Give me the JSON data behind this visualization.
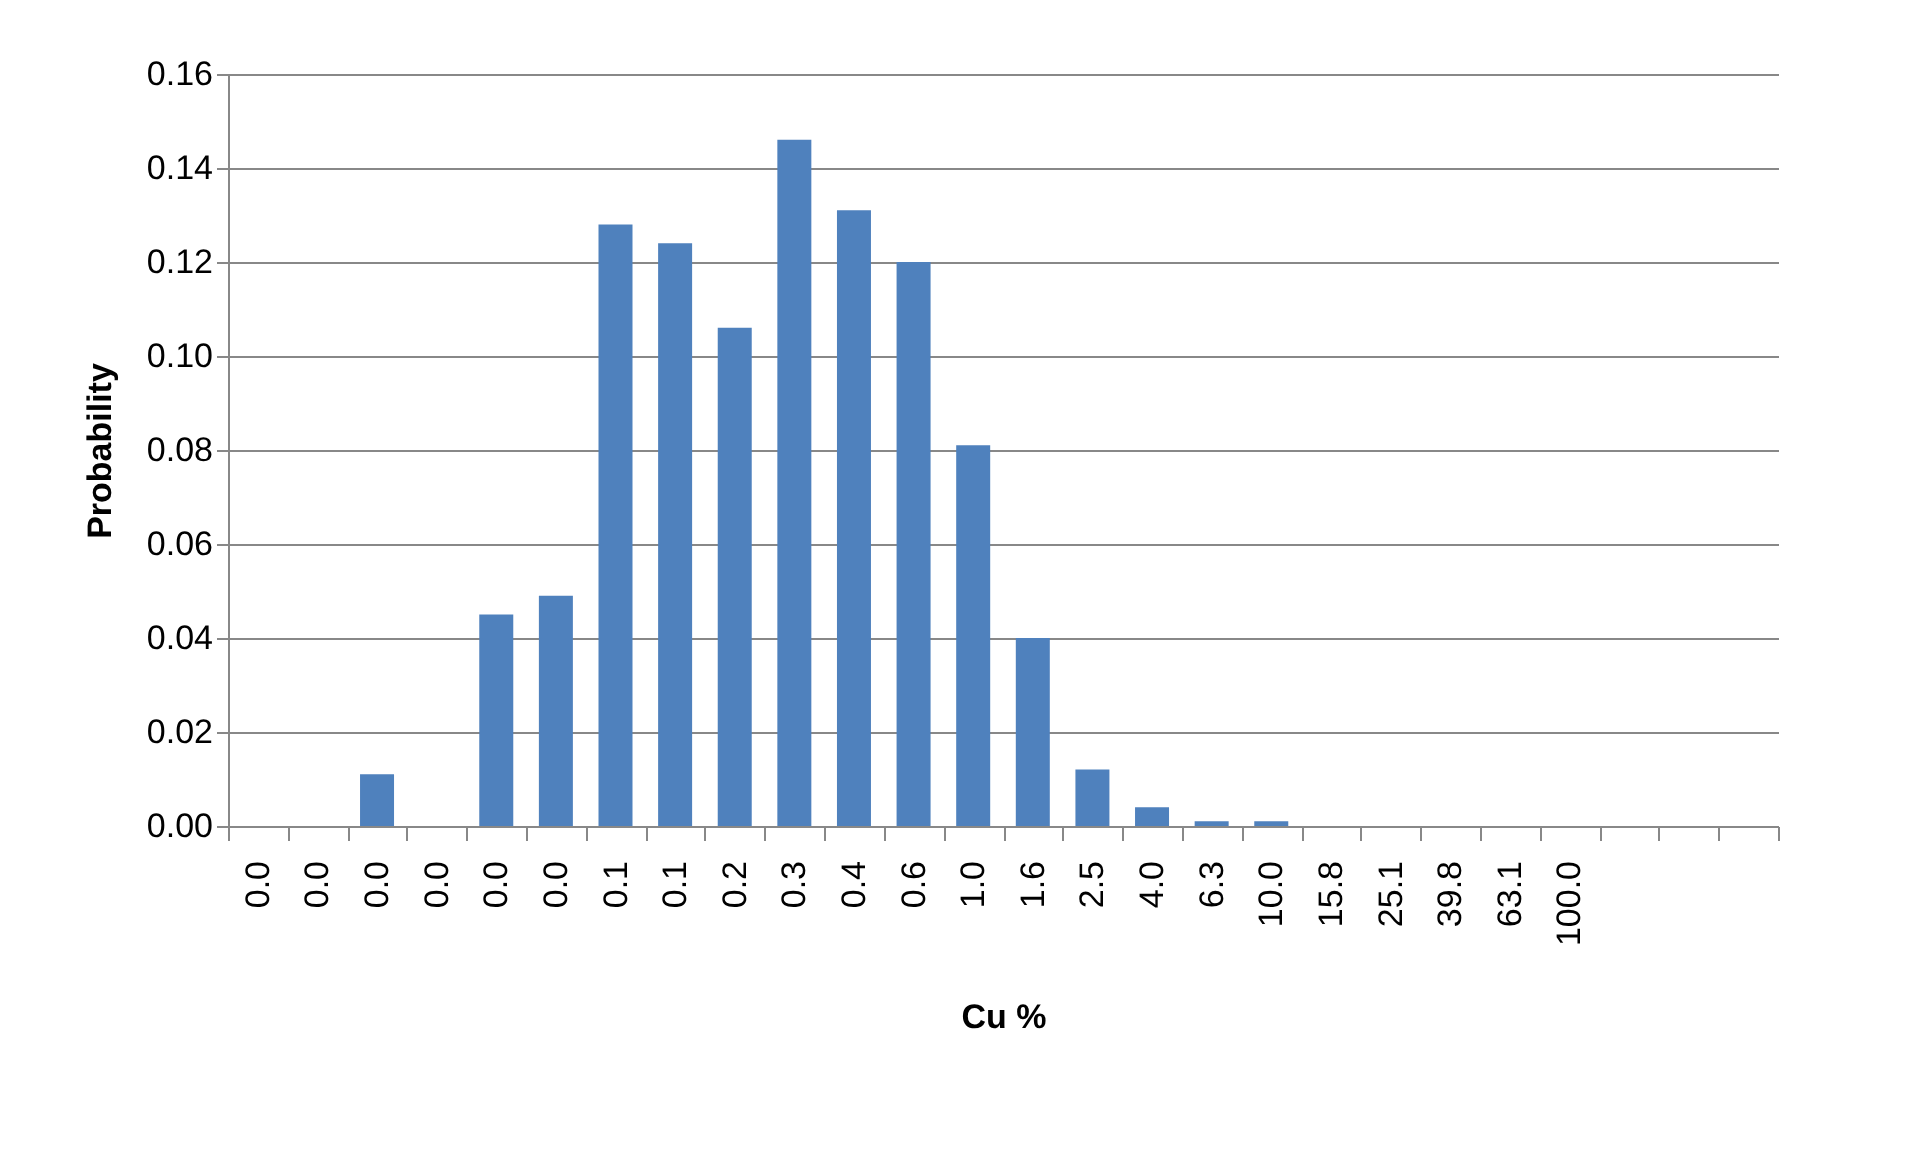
{
  "chart_data": {
    "type": "bar",
    "xlabel": "Cu %",
    "ylabel": "Probability",
    "categories": [
      "0.0",
      "0.0",
      "0.0",
      "0.0",
      "0.0",
      "0.0",
      "0.1",
      "0.1",
      "0.2",
      "0.3",
      "0.4",
      "0.6",
      "1.0",
      "1.6",
      "2.5",
      "4.0",
      "6.3",
      "10.0",
      "15.8",
      "25.1",
      "39.8",
      "63.1",
      "100.0",
      null,
      null,
      null
    ],
    "values": [
      0,
      0,
      0.011,
      0,
      0.045,
      0.049,
      0.128,
      0.124,
      0.106,
      0.146,
      0.131,
      0.12,
      0.081,
      0.04,
      0.012,
      0.004,
      0.001,
      0.001,
      0,
      0,
      0,
      0,
      0,
      0,
      0,
      0
    ],
    "color": "#4f81bd",
    "ylim": [
      0,
      0.16
    ],
    "yticks": [
      {
        "value": 0,
        "label": "0.00"
      },
      {
        "value": 0.02,
        "label": "0.02"
      },
      {
        "value": 0.04,
        "label": "0.04"
      },
      {
        "value": 0.06,
        "label": "0.06"
      },
      {
        "value": 0.08,
        "label": "0.08"
      },
      {
        "value": 0.1,
        "label": "0.10"
      },
      {
        "value": 0.12,
        "label": "0.12"
      },
      {
        "value": 0.14,
        "label": "0.14"
      },
      {
        "value": 0.16,
        "label": "0.16"
      }
    ],
    "grid": "y"
  }
}
